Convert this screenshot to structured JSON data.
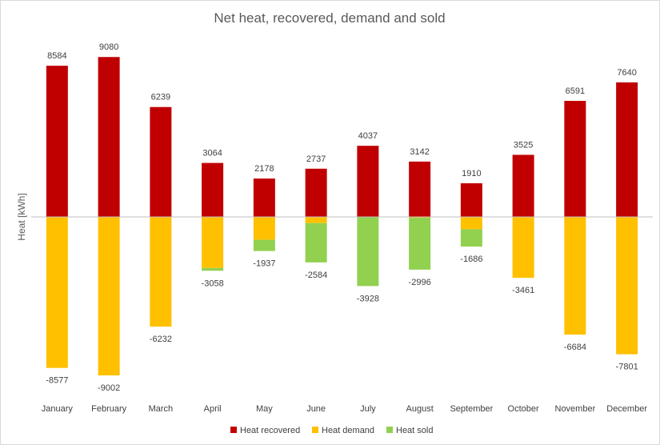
{
  "chart_data": {
    "type": "bar",
    "stacked": true,
    "title": "Net heat, recovered, demand and sold",
    "xlabel": "",
    "ylabel": "Heat [kWh]",
    "ylim": [
      -10000,
      10000
    ],
    "grid": false,
    "legend_position": "bottom",
    "categories": [
      "January",
      "February",
      "March",
      "April",
      "May",
      "June",
      "July",
      "August",
      "September",
      "October",
      "November",
      "December"
    ],
    "series": [
      {
        "name": "Heat recovered",
        "color": "#C00000",
        "values": [
          8584,
          9080,
          6239,
          3064,
          2178,
          2737,
          4037,
          3142,
          1910,
          3525,
          6591,
          7640
        ]
      },
      {
        "name": "Heat demand",
        "color": "#FFC000",
        "values": [
          -8577,
          -9002,
          -6232,
          -2902,
          -1300,
          -350,
          0,
          -50,
          -700,
          -3461,
          -6684,
          -7801
        ]
      },
      {
        "name": "Heat sold",
        "color": "#92D050",
        "values": [
          0,
          0,
          0,
          -156,
          -637,
          -2234,
          -3928,
          -2946,
          -986,
          0,
          0,
          0
        ]
      }
    ],
    "positive_labels": [
      "8584",
      "9080",
      "6239",
      "3064",
      "2178",
      "2737",
      "4037",
      "3142",
      "1910",
      "3525",
      "6591",
      "7640"
    ],
    "negative_labels": [
      "-8577",
      "-9002",
      "-6232",
      "-3058",
      "-1937",
      "-2584",
      "-3928",
      "-2996",
      "-1686",
      "-3461",
      "-6684",
      "-7801"
    ]
  }
}
